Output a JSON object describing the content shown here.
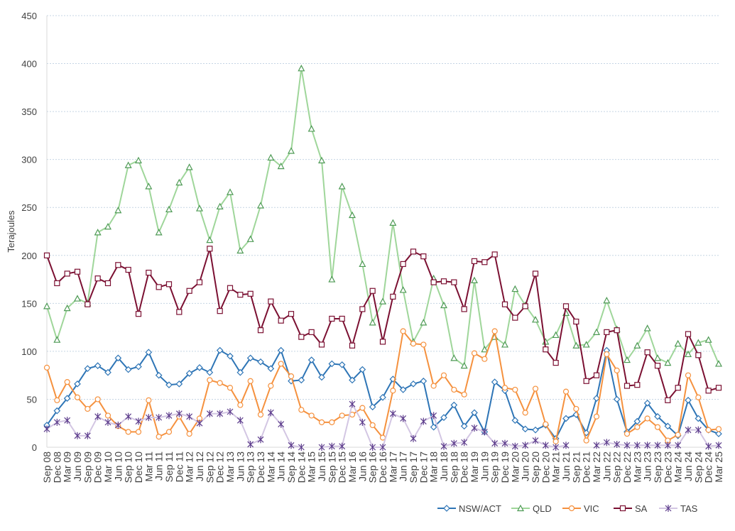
{
  "chart_data": {
    "type": "line",
    "y_label": "Terajoules",
    "categories": [
      "Sep 08",
      "Dec 08",
      "Mar 09",
      "Jun 09",
      "Sep 09",
      "Dec 09",
      "Mar 10",
      "Jun 10",
      "Sep 10",
      "Dec 10",
      "Mar 11",
      "Jun 11",
      "Sep 11",
      "Dec 11",
      "Mar 12",
      "Jun 12",
      "Sep 12",
      "Dec 12",
      "Mar 13",
      "Jun 13",
      "Sep 13",
      "Dec 13",
      "Mar 14",
      "Jun 14",
      "Sep 14",
      "Dec 14",
      "Mar 15",
      "Jun 15",
      "Sep 15",
      "Dec 15",
      "Mar 16",
      "Jun 16",
      "Sep 16",
      "Dec 16",
      "Mar 17",
      "Jun 17",
      "Sep 17",
      "Dec 17",
      "Mar 18",
      "Jun 18",
      "Sep 18",
      "Dec 18",
      "Mar 19",
      "Jun 19",
      "Sep 19",
      "Dec 19",
      "Mar 20",
      "Jun 20",
      "Sep 20",
      "Dec 20",
      "Mar 21",
      "Jun 21",
      "Sep 21",
      "Dec 21",
      "Mar 22",
      "Jun 22",
      "Sep 22",
      "Dec 22",
      "Mar 23",
      "Jun 23",
      "Sep 23",
      "Dec 23",
      "Mar 24",
      "Jun 24",
      "Sep 24",
      "Dec 24",
      "Mar 25"
    ],
    "series": [
      {
        "name": "NSW/ACT",
        "color": "#2e75b6",
        "marker": "diamond",
        "values": [
          23,
          38,
          51,
          66,
          82,
          85,
          78,
          93,
          81,
          84,
          99,
          75,
          65,
          66,
          77,
          83,
          78,
          101,
          95,
          78,
          93,
          89,
          82,
          101,
          69,
          70,
          91,
          73,
          87,
          86,
          70,
          81,
          42,
          52,
          71,
          60,
          66,
          69,
          21,
          31,
          44,
          22,
          36,
          16,
          68,
          59,
          28,
          19,
          18,
          23,
          9,
          30,
          34,
          15,
          51,
          101,
          50,
          16,
          27,
          46,
          32,
          22,
          12,
          49,
          30,
          18,
          14
        ]
      },
      {
        "name": "QLD",
        "color": "#9fd69a",
        "marker_color": "#4e9a55",
        "marker": "triangle",
        "values": [
          147,
          112,
          145,
          155,
          150,
          224,
          230,
          247,
          294,
          299,
          272,
          224,
          248,
          276,
          292,
          249,
          216,
          251,
          266,
          205,
          217,
          252,
          302,
          293,
          309,
          395,
          332,
          299,
          175,
          272,
          242,
          191,
          130,
          152,
          234,
          164,
          110,
          130,
          176,
          148,
          93,
          85,
          174,
          102,
          115,
          107,
          165,
          148,
          133,
          110,
          117,
          140,
          106,
          107,
          120,
          153,
          123,
          91,
          106,
          124,
          93,
          88,
          108,
          97,
          109,
          112,
          87
        ]
      },
      {
        "name": "VIC",
        "color": "#f5913e",
        "marker": "circle",
        "values": [
          83,
          49,
          68,
          52,
          40,
          50,
          33,
          22,
          16,
          16,
          49,
          11,
          16,
          32,
          14,
          30,
          70,
          67,
          62,
          44,
          69,
          34,
          64,
          87,
          74,
          39,
          33,
          26,
          26,
          33,
          34,
          41,
          23,
          10,
          59,
          121,
          108,
          107,
          64,
          75,
          60,
          55,
          98,
          92,
          121,
          62,
          60,
          36,
          61,
          24,
          6,
          58,
          40,
          7,
          32,
          97,
          80,
          14,
          21,
          30,
          21,
          7,
          13,
          75,
          52,
          18,
          19
        ]
      },
      {
        "name": "SA",
        "color": "#7b1032",
        "marker": "square",
        "values": [
          200,
          171,
          181,
          183,
          149,
          176,
          171,
          190,
          185,
          139,
          182,
          167,
          170,
          141,
          163,
          172,
          207,
          142,
          166,
          159,
          160,
          122,
          152,
          132,
          139,
          115,
          120,
          107,
          134,
          134,
          106,
          144,
          163,
          110,
          157,
          191,
          204,
          199,
          172,
          173,
          172,
          144,
          194,
          193,
          201,
          149,
          135,
          147,
          181,
          102,
          88,
          147,
          131,
          69,
          75,
          120,
          122,
          64,
          65,
          99,
          85,
          49,
          62,
          118,
          96,
          59,
          62
        ]
      },
      {
        "name": "TAS",
        "color": "#d3c6e3",
        "marker_color": "#5d3d8c",
        "marker": "star",
        "values": [
          19,
          26,
          28,
          12,
          12,
          32,
          26,
          23,
          32,
          27,
          31,
          31,
          33,
          35,
          32,
          25,
          35,
          35,
          37,
          28,
          3,
          8,
          36,
          24,
          2,
          0,
          null,
          0,
          1,
          1,
          45,
          26,
          0,
          0,
          35,
          30,
          9,
          27,
          33,
          1,
          4,
          5,
          20,
          16,
          4,
          4,
          1,
          2,
          7,
          2,
          0,
          2,
          null,
          null,
          2,
          5,
          3,
          2,
          2,
          2,
          2,
          2,
          2,
          18,
          18,
          1,
          2
        ]
      }
    ],
    "ylim": [
      0,
      450
    ],
    "yticks": [
      0,
      50,
      100,
      150,
      200,
      250,
      300,
      350,
      400,
      450
    ],
    "grid": true,
    "legend": "bottom-right"
  }
}
